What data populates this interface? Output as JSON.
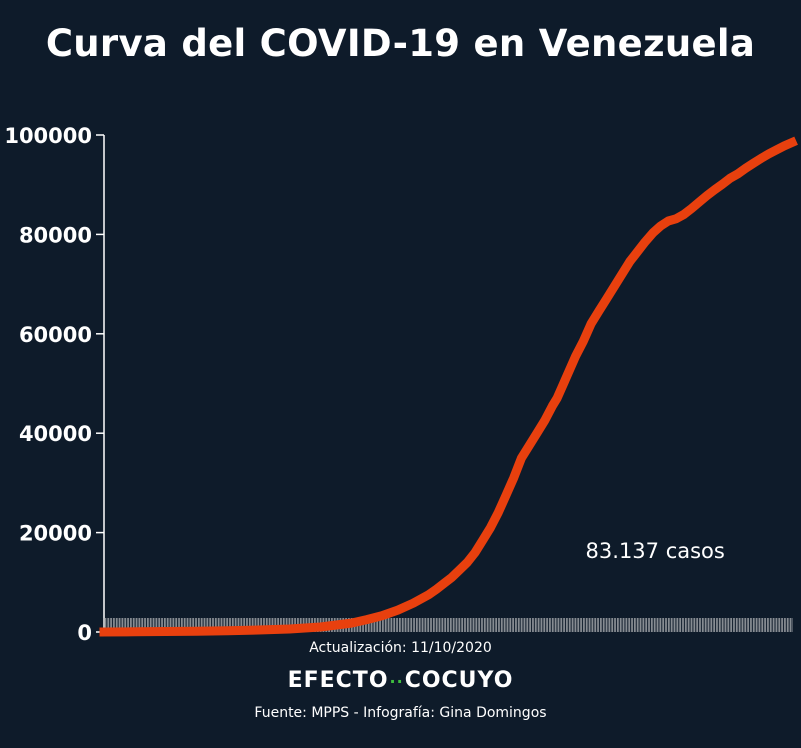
{
  "chart_data": {
    "type": "line",
    "title": "Curva del COVID-19 en Venezuela",
    "xlabel": "",
    "ylabel": "",
    "ylim": [
      0,
      100000
    ],
    "yticks": [
      0,
      20000,
      40000,
      60000,
      80000,
      100000
    ],
    "grid": false,
    "series_color": "#e8400e",
    "annotation": "83.137 casos",
    "x": [
      0,
      20,
      40,
      60,
      80,
      100,
      120,
      140,
      160,
      170,
      180,
      190,
      200,
      210,
      215,
      220,
      225,
      230,
      235,
      240,
      245,
      250,
      255,
      260,
      265,
      270,
      275,
      280,
      285,
      290,
      293,
      298,
      305,
      310,
      315,
      320,
      325,
      330,
      335,
      340,
      345,
      350,
      355,
      360,
      365,
      370,
      375,
      380,
      385,
      390,
      395,
      400,
      405,
      410,
      415,
      420,
      425,
      430,
      435,
      440,
      445
    ],
    "values": [
      0,
      50,
      100,
      170,
      260,
      400,
      600,
      1000,
      1800,
      2500,
      3300,
      4400,
      5800,
      7500,
      8600,
      9800,
      11000,
      12500,
      14000,
      16000,
      18500,
      21000,
      24000,
      27500,
      31000,
      35000,
      37500,
      40000,
      42500,
      45500,
      47000,
      50500,
      55500,
      58500,
      62000,
      64500,
      67000,
      69500,
      72000,
      74500,
      76500,
      78500,
      80300,
      81700,
      82700,
      83137,
      84000,
      85200,
      86500,
      87800,
      89000,
      90100,
      91300,
      92200,
      93300,
      94300,
      95300,
      96200,
      97000,
      97800,
      98500
    ]
  },
  "footer": {
    "update": "Actualización: 11/10/2020",
    "brand_left": "EFECTO",
    "brand_dots": "··",
    "brand_right": "COCUYO",
    "source": "Fuente: MPPS - Infografía: Gina Domingos"
  }
}
